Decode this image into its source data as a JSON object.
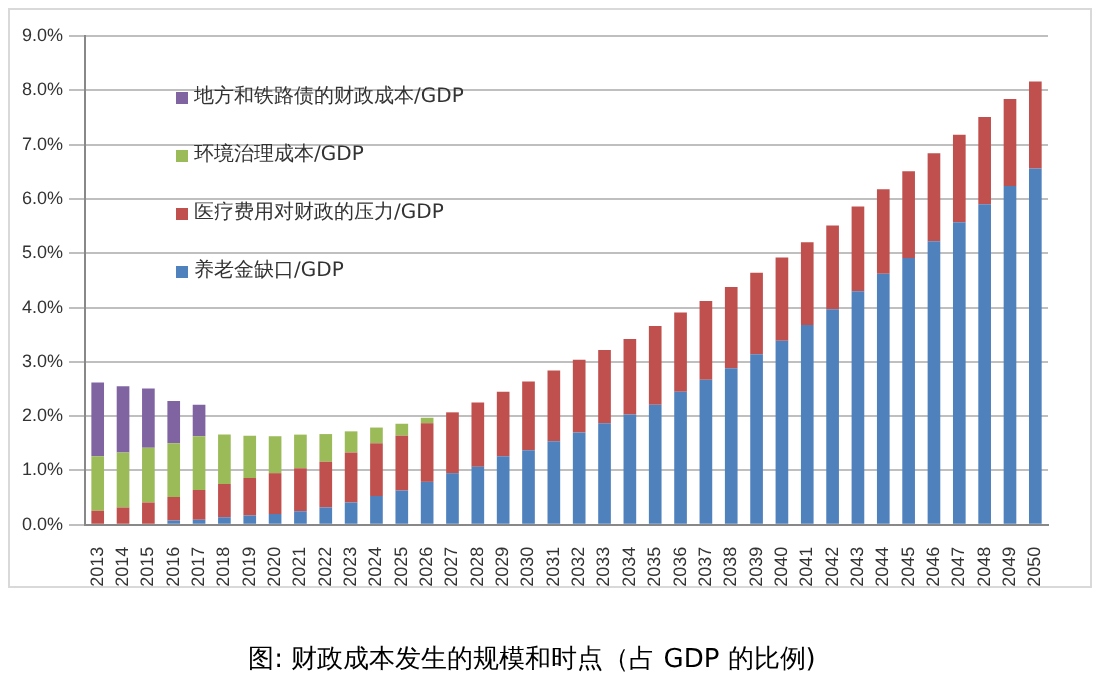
{
  "chart_data": {
    "type": "bar",
    "title": "图: 财政成本发生的规模和时点（占 GDP 的比例)",
    "categories": [
      "2013",
      "2014",
      "2015",
      "2016",
      "2017",
      "2018",
      "2019",
      "2020",
      "2021",
      "2022",
      "2023",
      "2024",
      "2025",
      "2026",
      "2027",
      "2028",
      "2029",
      "2030",
      "2031",
      "2032",
      "2033",
      "2034",
      "2035",
      "2036",
      "2037",
      "2038",
      "2039",
      "2040",
      "2041",
      "2042",
      "2043",
      "2044",
      "2045",
      "2046",
      "2047",
      "2048",
      "2049",
      "2050"
    ],
    "stacked": true,
    "grid": "y",
    "legend": "top left",
    "ylim": [
      0,
      9
    ],
    "yticks": [
      {
        "value": 0,
        "label": "0.0%"
      },
      {
        "value": 1,
        "label": "1.0%"
      },
      {
        "value": 2,
        "label": "2.0%"
      },
      {
        "value": 3,
        "label": "3.0%"
      },
      {
        "value": 4,
        "label": "4.0%"
      },
      {
        "value": 5,
        "label": "5.0%"
      },
      {
        "value": 6,
        "label": "6.0%"
      },
      {
        "value": 7,
        "label": "7.0%"
      },
      {
        "value": 8,
        "label": "8.0%"
      },
      {
        "value": 9,
        "label": "9.0%"
      }
    ],
    "series": [
      {
        "name": "养老金缺口/GDP",
        "color": "#4f81bd",
        "values": [
          0.02,
          0,
          0,
          0.08,
          0.09,
          0.14,
          0.17,
          0.2,
          0.25,
          0.32,
          0.41,
          0.53,
          0.63,
          0.79,
          0.95,
          1.07,
          1.26,
          1.37,
          1.54,
          1.7,
          1.87,
          2.03,
          2.21,
          2.45,
          2.67,
          2.88,
          3.14,
          3.39,
          3.68,
          3.97,
          4.3,
          4.62,
          4.91,
          5.22,
          5.57,
          5.9,
          6.24,
          6.56
        ]
      },
      {
        "name": "医疗费用对财政的压力/GDP",
        "color": "#c0504d",
        "values": [
          0.24,
          0.32,
          0.41,
          0.43,
          0.55,
          0.61,
          0.69,
          0.75,
          0.79,
          0.84,
          0.92,
          0.97,
          1.01,
          1.08,
          1.12,
          1.18,
          1.19,
          1.27,
          1.3,
          1.34,
          1.35,
          1.39,
          1.45,
          1.46,
          1.45,
          1.5,
          1.5,
          1.53,
          1.52,
          1.54,
          1.56,
          1.56,
          1.6,
          1.62,
          1.61,
          1.61,
          1.6,
          1.6
        ]
      },
      {
        "name": "环境治理成本/GDP",
        "color": "#9bbb59",
        "values": [
          1.0,
          1.01,
          1.01,
          0.99,
          0.99,
          0.91,
          0.78,
          0.68,
          0.62,
          0.51,
          0.39,
          0.29,
          0.22,
          0.1,
          0,
          0,
          0,
          0,
          0,
          0,
          0,
          0,
          0,
          0,
          0,
          0,
          0,
          0,
          0,
          0,
          0,
          0,
          0,
          0,
          0,
          0,
          0,
          0
        ]
      },
      {
        "name": "地方和铁路债的财政成本/GDP",
        "color": "#8064a2",
        "values": [
          1.36,
          1.22,
          1.09,
          0.78,
          0.58,
          0,
          0,
          0,
          0,
          0,
          0,
          0,
          0,
          0,
          0,
          0,
          0,
          0,
          0,
          0,
          0,
          0,
          0,
          0,
          0,
          0,
          0,
          0,
          0,
          0,
          0,
          0,
          0,
          0,
          0,
          0,
          0,
          0
        ]
      }
    ]
  }
}
